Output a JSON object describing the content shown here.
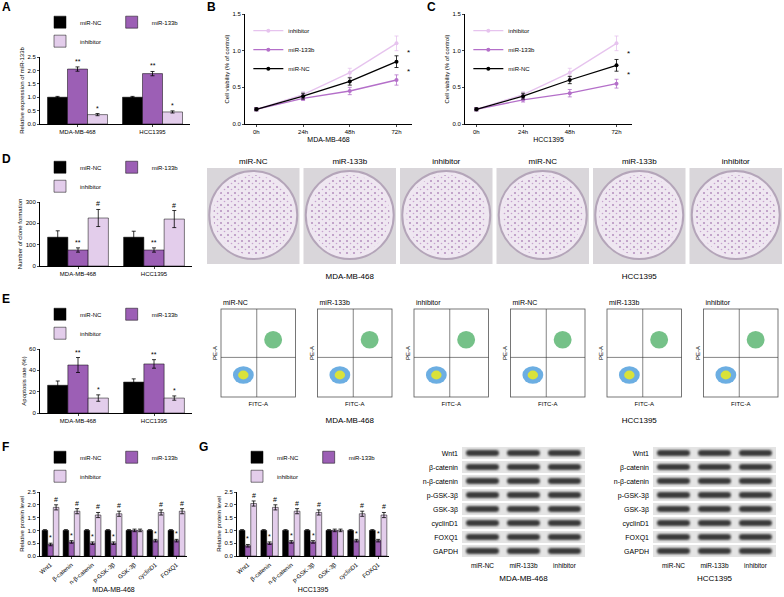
{
  "chart_data": [
    {
      "panel": "A",
      "type": "bar",
      "categories": [
        "MDA-MB-468",
        "HCC1395"
      ],
      "y_label": "Relative expression of miR-133b",
      "series": [
        {
          "name": "miR-NC",
          "color": "#000000",
          "values": [
            1.0,
            1.0
          ],
          "errors": [
            0.03,
            0.03
          ],
          "significance": [
            null,
            null
          ]
        },
        {
          "name": "miR-133b",
          "color": "#9c5fb5",
          "values": [
            2.05,
            1.88
          ],
          "errors": [
            0.08,
            0.08
          ],
          "significance": [
            "**",
            "**"
          ]
        },
        {
          "name": "inhibitor",
          "color": "#e3cdeb",
          "values": [
            0.35,
            0.45
          ],
          "errors": [
            0.04,
            0.04
          ],
          "significance": [
            "*",
            "*"
          ]
        }
      ],
      "ylim": [
        0,
        2.5
      ],
      "yticks": [
        {
          "value": 0,
          "label": "0.0"
        },
        {
          "value": 0.5,
          "label": "0.5"
        },
        {
          "value": 1,
          "label": "1.0"
        },
        {
          "value": 1.5,
          "label": "1.5"
        },
        {
          "value": 2,
          "label": "2.0"
        },
        {
          "value": 2.5,
          "label": "2.5"
        }
      ],
      "grid": false,
      "legend": "top"
    },
    {
      "panel": "B",
      "type": "line",
      "categories": [
        "0h",
        "24h",
        "48h",
        "72h"
      ],
      "x_label": "MDA-MB-468",
      "y_label": "Cell viability (% of control)",
      "series": [
        {
          "name": "inhibitor",
          "color": "#e6c3ee",
          "marker": "circle",
          "values": [
            0.2,
            0.4,
            0.7,
            1.1
          ],
          "errors": [
            0.02,
            0.04,
            0.06,
            0.1
          ]
        },
        {
          "name": "miR-133b",
          "color": "#b46fc9",
          "marker": "circle",
          "values": [
            0.2,
            0.35,
            0.45,
            0.6
          ],
          "errors": [
            0.02,
            0.03,
            0.05,
            0.07
          ]
        },
        {
          "name": "miR-NC",
          "color": "#000000",
          "marker": "circle",
          "values": [
            0.2,
            0.38,
            0.58,
            0.85
          ],
          "errors": [
            0.02,
            0.04,
            0.05,
            0.08
          ]
        }
      ],
      "annotations": [
        {
          "text": "*",
          "x": "72h",
          "y": 0.98
        },
        {
          "text": "*",
          "x": "72h",
          "y": 0.72
        }
      ],
      "ylim": [
        0,
        1.5
      ],
      "yticks": [
        {
          "value": 0,
          "label": "0.0"
        },
        {
          "value": 0.5,
          "label": "0.5"
        },
        {
          "value": 1,
          "label": "1.0"
        },
        {
          "value": 1.5,
          "label": "1.5"
        }
      ],
      "grid": false,
      "legend": "top left"
    },
    {
      "panel": "C",
      "type": "line",
      "categories": [
        "0h",
        "24h",
        "48h",
        "72h"
      ],
      "x_label": "HCC1395",
      "y_label": "Cell viability (% of control)",
      "series": [
        {
          "name": "inhibitor",
          "color": "#e6c3ee",
          "marker": "circle",
          "values": [
            0.2,
            0.4,
            0.7,
            1.1
          ],
          "errors": [
            0.02,
            0.04,
            0.06,
            0.1
          ]
        },
        {
          "name": "miR-133b",
          "color": "#b46fc9",
          "marker": "circle",
          "values": [
            0.2,
            0.33,
            0.42,
            0.55
          ],
          "errors": [
            0.02,
            0.03,
            0.05,
            0.06
          ]
        },
        {
          "name": "miR-NC",
          "color": "#000000",
          "marker": "circle",
          "values": [
            0.2,
            0.38,
            0.6,
            0.8
          ],
          "errors": [
            0.02,
            0.04,
            0.05,
            0.08
          ]
        }
      ],
      "annotations": [
        {
          "text": "*",
          "x": "72h",
          "y": 0.96
        },
        {
          "text": "*",
          "x": "72h",
          "y": 0.68
        }
      ],
      "ylim": [
        0,
        1.5
      ],
      "yticks": [
        {
          "value": 0,
          "label": "0.0"
        },
        {
          "value": 0.5,
          "label": "0.5"
        },
        {
          "value": 1,
          "label": "1.0"
        },
        {
          "value": 1.5,
          "label": "1.5"
        }
      ],
      "grid": false,
      "legend": "top left"
    },
    {
      "panel": "D",
      "type": "bar",
      "categories": [
        "MDA-MB-468",
        "HCC1395"
      ],
      "y_label": "Number of clone formation",
      "series": [
        {
          "name": "miR-NC",
          "color": "#000000",
          "values": [
            135,
            135
          ],
          "errors": [
            30,
            28
          ],
          "significance": [
            null,
            null
          ]
        },
        {
          "name": "miR-133b",
          "color": "#9c5fb5",
          "values": [
            75,
            75
          ],
          "errors": [
            10,
            10
          ],
          "significance": [
            "**",
            "**"
          ]
        },
        {
          "name": "inhibitor",
          "color": "#e3cdeb",
          "values": [
            225,
            220
          ],
          "errors": [
            40,
            40
          ],
          "significance": [
            "#",
            "#"
          ]
        }
      ],
      "ylim": [
        0,
        300
      ],
      "yticks": [
        0,
        100,
        200,
        300
      ],
      "grid": false,
      "legend": "top"
    },
    {
      "panel": "E",
      "type": "bar",
      "categories": [
        "MDA-MB-468",
        "HCC1395"
      ],
      "y_label": "Apoptosis rate (%)",
      "series": [
        {
          "name": "miR-NC",
          "color": "#000000",
          "values": [
            26,
            29
          ],
          "errors": [
            4,
            3
          ],
          "significance": [
            null,
            null
          ]
        },
        {
          "name": "miR-133b",
          "color": "#9c5fb5",
          "values": [
            45,
            46
          ],
          "errors": [
            7,
            4
          ],
          "significance": [
            "**",
            "**"
          ]
        },
        {
          "name": "inhibitor",
          "color": "#e3cdeb",
          "values": [
            14,
            14
          ],
          "errors": [
            3,
            2
          ],
          "significance": [
            "*",
            "*"
          ]
        }
      ],
      "ylim": [
        0,
        60
      ],
      "yticks": [
        0,
        20,
        40,
        60
      ],
      "grid": false,
      "legend": "top"
    },
    {
      "panel": "F",
      "type": "bar",
      "categories": [
        "Wnt1",
        "β-catenin",
        "n-β-catenin",
        "p-GSK-3β",
        "GSK-3β",
        "cyclinD1",
        "FOXQ1"
      ],
      "x_label": "MDA-MB-468",
      "y_label": "Relative protein level",
      "series": [
        {
          "name": "miR-NC",
          "color": "#000000",
          "values": [
            1.0,
            1.0,
            1.0,
            1.0,
            1.0,
            1.0,
            1.0
          ],
          "errors": [
            0.03,
            0.03,
            0.03,
            0.03,
            0.03,
            0.03,
            0.03
          ],
          "significance": [
            null,
            null,
            null,
            null,
            null,
            null,
            null
          ]
        },
        {
          "name": "miR-133b",
          "color": "#9c5fb5",
          "values": [
            0.45,
            0.55,
            0.5,
            0.5,
            1.0,
            0.6,
            0.6
          ],
          "errors": [
            0.05,
            0.05,
            0.05,
            0.05,
            0.05,
            0.05,
            0.05
          ],
          "significance": [
            "*",
            "*",
            "*",
            "*",
            null,
            "*",
            "*"
          ]
        },
        {
          "name": "inhibitor",
          "color": "#e3cdeb",
          "values": [
            1.9,
            1.75,
            1.6,
            1.65,
            1.0,
            1.7,
            1.75
          ],
          "errors": [
            0.1,
            0.1,
            0.1,
            0.1,
            0.05,
            0.1,
            0.1
          ],
          "significance": [
            "#",
            "#",
            "#",
            "#",
            null,
            "#",
            "#"
          ]
        }
      ],
      "ylim": [
        0,
        2.5
      ],
      "yticks": [
        {
          "value": 0,
          "label": "0.0"
        },
        {
          "value": 0.5,
          "label": "0.5"
        },
        {
          "value": 1,
          "label": "1.0"
        },
        {
          "value": 1.5,
          "label": "1.5"
        },
        {
          "value": 2,
          "label": "2.0"
        },
        {
          "value": 2.5,
          "label": "2.5"
        }
      ],
      "grid": false,
      "legend": "top"
    },
    {
      "panel": "G",
      "type": "bar",
      "categories": [
        "Wnt1",
        "β-catenin",
        "n-β-catenin",
        "p-GSK-3β",
        "GSK-3β",
        "cyclinD1",
        "FOXQ1"
      ],
      "x_label": "HCC1395",
      "y_label": "Relative protein level",
      "series": [
        {
          "name": "miR-NC",
          "color": "#000000",
          "values": [
            1.0,
            1.0,
            1.0,
            1.0,
            1.0,
            1.0,
            1.0
          ],
          "errors": [
            0.03,
            0.03,
            0.03,
            0.03,
            0.03,
            0.03,
            0.03
          ],
          "significance": [
            null,
            null,
            null,
            null,
            null,
            null,
            null
          ]
        },
        {
          "name": "miR-133b",
          "color": "#9c5fb5",
          "values": [
            0.4,
            0.5,
            0.55,
            0.55,
            1.0,
            0.6,
            0.6
          ],
          "errors": [
            0.05,
            0.05,
            0.05,
            0.05,
            0.05,
            0.05,
            0.05
          ],
          "significance": [
            "*",
            "*",
            "*",
            "*",
            null,
            "*",
            "*"
          ]
        },
        {
          "name": "inhibitor",
          "color": "#e3cdeb",
          "values": [
            2.05,
            1.9,
            1.75,
            1.7,
            1.0,
            1.65,
            1.6
          ],
          "errors": [
            0.1,
            0.1,
            0.1,
            0.1,
            0.05,
            0.1,
            0.1
          ],
          "significance": [
            "#",
            "#",
            "#",
            "#",
            null,
            "#",
            "#"
          ]
        }
      ],
      "ylim": [
        0,
        2.5
      ],
      "yticks": [
        {
          "value": 0,
          "label": "0.0"
        },
        {
          "value": 0.5,
          "label": "0.5"
        },
        {
          "value": 1,
          "label": "1.0"
        },
        {
          "value": 1.5,
          "label": "1.5"
        },
        {
          "value": 2,
          "label": "2.0"
        },
        {
          "value": 2.5,
          "label": "2.5"
        }
      ],
      "grid": false,
      "legend": "top"
    }
  ],
  "colony_images": {
    "titles": [
      "miR-NC",
      "miR-133b",
      "inhibitor",
      "miR-NC",
      "miR-133b",
      "inhibitor"
    ],
    "groups": [
      "MDA-MB-468",
      "HCC1395"
    ]
  },
  "flow_plots": {
    "titles": [
      "miR-NC",
      "miR-133b",
      "inhibitor",
      "miR-NC",
      "miR-133b",
      "inhibitor"
    ],
    "x_label": "FITC-A",
    "y_label": "PE-A",
    "groups": [
      "MDA-MB-468",
      "HCC1395"
    ]
  },
  "western_blots": {
    "rows": [
      "Wnt1",
      "β-catenin",
      "n-β-catenin",
      "p-GSK-3β",
      "GSK-3β",
      "cyclinD1",
      "FOXQ1",
      "GAPDH"
    ],
    "lanes": [
      "miR-NC",
      "miR-133b",
      "inhibitor"
    ],
    "groups": [
      "MDA-MB-468",
      "HCC1395"
    ]
  }
}
